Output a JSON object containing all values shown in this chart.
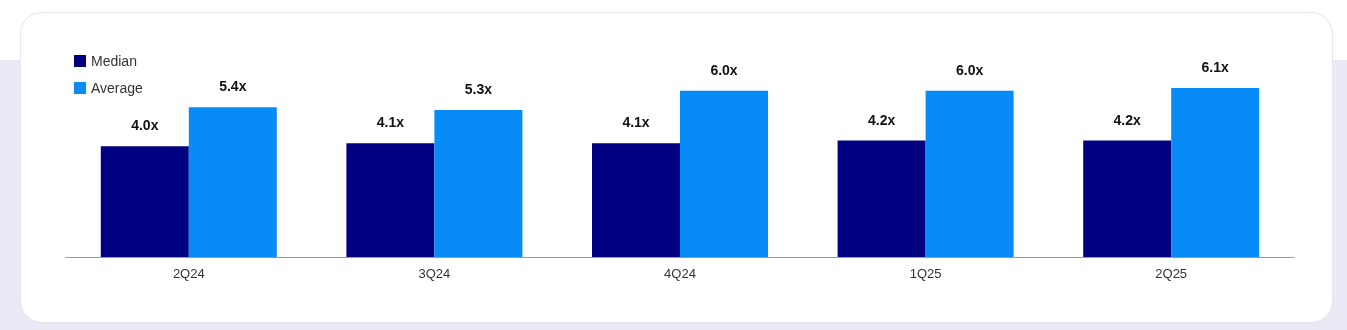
{
  "chart_data": {
    "type": "bar",
    "categories": [
      "2Q24",
      "3Q24",
      "4Q24",
      "1Q25",
      "2Q25"
    ],
    "series": [
      {
        "name": "Median",
        "color": "#000080",
        "values": [
          4.0,
          4.1,
          4.1,
          4.2,
          4.2
        ],
        "value_labels": [
          "4.0x",
          "4.1x",
          "4.1x",
          "4.2x",
          "4.2x"
        ]
      },
      {
        "name": "Average",
        "color": "#078bf7",
        "values": [
          5.4,
          5.3,
          6.0,
          6.0,
          6.1
        ],
        "value_labels": [
          "5.4x",
          "5.3x",
          "6.0x",
          "6.0x",
          "6.1x"
        ]
      }
    ],
    "legend": "top left"
  }
}
